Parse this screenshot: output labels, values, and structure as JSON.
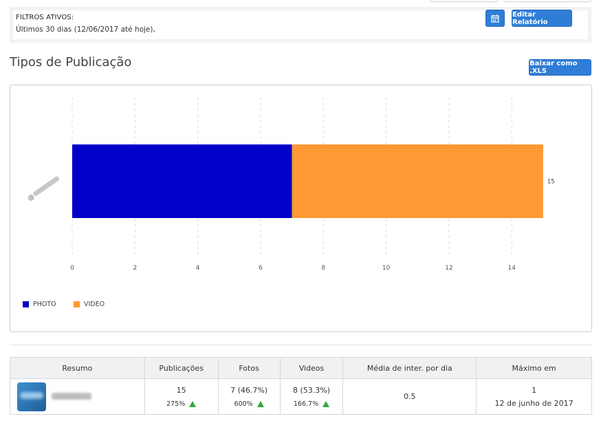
{
  "filters": {
    "title": "FILTROS ATIVOS:",
    "range": "Últimos 30 dias (12/06/2017 até hoje),",
    "edit_label": "Editar Relatório"
  },
  "section": {
    "title": "Tipos de Publicação",
    "xls_label": "Baixar como .XLS"
  },
  "chart_data": {
    "type": "bar",
    "orientation": "horizontal",
    "stacked": true,
    "categories": [
      "@"
    ],
    "series": [
      {
        "name": "PHOTO",
        "values": [
          7
        ],
        "color": "#0000c8"
      },
      {
        "name": "VIDEO",
        "values": [
          8
        ],
        "color": "#ff9933"
      }
    ],
    "total_labels": [
      "15"
    ],
    "xlim": [
      0,
      15
    ],
    "xticks": [
      0,
      2,
      4,
      6,
      8,
      10,
      12,
      14
    ],
    "grid": true,
    "legend_position": "bottom-left"
  },
  "table": {
    "headers": [
      "Resumo",
      "Publicações",
      "Fotos",
      "Videos",
      "Média de inter. por dia",
      "Máximo em"
    ],
    "row": {
      "publicacoes": "15",
      "publicacoes_growth": "275%",
      "fotos": "7 (46.7%)",
      "fotos_growth": "600%",
      "videos": "8 (53.3%)",
      "videos_growth": "166.7%",
      "media": "0.5",
      "maximo_value": "1",
      "maximo_date": "12 de junho de 2017"
    }
  },
  "colors": {
    "accent": "#2f7dd6",
    "growth_up": "#2faa3f"
  }
}
